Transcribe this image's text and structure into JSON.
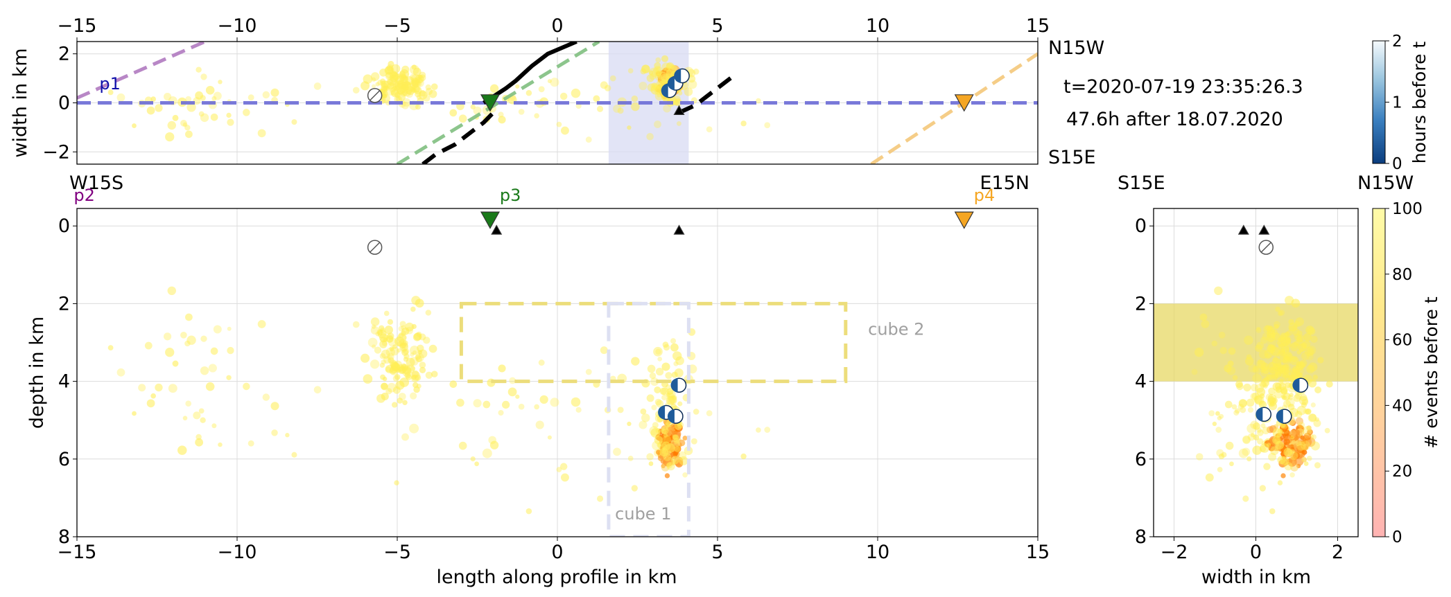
{
  "chart_data": [
    {
      "type": "scatter",
      "panel": "map-view",
      "xlabel": "",
      "ylabel": "width in km",
      "xlim": [
        -15,
        15
      ],
      "ylim": [
        -2.5,
        2.5
      ],
      "xticks": [
        -15,
        -10,
        -5,
        0,
        5,
        10,
        15
      ],
      "yticks": [
        -2,
        0,
        2
      ],
      "grid": true,
      "x_tick_position": "top",
      "side_labels": {
        "north": "N15W",
        "south": "S15E"
      },
      "profile_labels": [
        {
          "text": "p1",
          "x": -14.3,
          "y": 0.55,
          "color": "#1010aa"
        }
      ],
      "lines": [
        {
          "name": "p1",
          "color": "#6b6bd6",
          "x": [
            -15,
            15
          ],
          "y": [
            0,
            0
          ]
        },
        {
          "name": "p2",
          "color": "#b07ac0",
          "x": [
            -15,
            -11
          ],
          "y": [
            0.2,
            2.5
          ]
        },
        {
          "name": "p3",
          "color": "#7fbf7f",
          "x": [
            -5,
            1.3
          ],
          "y": [
            -2.5,
            2.5
          ]
        },
        {
          "name": "p4",
          "color": "#f4c87a",
          "x": [
            9.8,
            15
          ],
          "y": [
            -2.5,
            2.0
          ]
        },
        {
          "name": "fault-north",
          "color": "#000000",
          "x": [
            -2.3,
            -1.6,
            -1.3,
            -0.8,
            -0.6,
            -0.3,
            0.6
          ],
          "y": [
            0.0,
            0.6,
            0.9,
            1.5,
            1.7,
            2.0,
            2.5
          ]
        },
        {
          "name": "fault-south",
          "color": "#000000",
          "x": [
            -4.2,
            -3.8,
            -3.2,
            -2.3,
            -2.0
          ],
          "y": [
            -2.5,
            -2.1,
            -1.7,
            -0.8,
            -0.4
          ]
        },
        {
          "name": "fault-east",
          "color": "#000000",
          "x": [
            3.8,
            4.3,
            5.5
          ],
          "y": [
            -0.4,
            -0.1,
            1.1
          ]
        }
      ],
      "shaded_x_range": [
        1.6,
        4.1
      ],
      "stations": [
        {
          "label": "p3",
          "x": -2.1,
          "y": 0.0,
          "color": "#1a7a1a"
        },
        {
          "label": "p4",
          "x": 12.7,
          "y": 0.0,
          "color": "#f5a623"
        }
      ],
      "triangles": [
        {
          "x": 3.8,
          "y": -0.3
        }
      ],
      "mechanisms": [
        {
          "x": -5.7,
          "y": 0.3,
          "filled": false
        },
        {
          "x": 3.5,
          "y": 0.5,
          "filled": true
        },
        {
          "x": 3.7,
          "y": 0.8,
          "filled": true
        },
        {
          "x": 3.9,
          "y": 1.1,
          "filled": true
        }
      ],
      "text": [
        "t=2020-07-19 23:35:26.3",
        "47.6h after 18.07.2020"
      ]
    },
    {
      "type": "scatter",
      "panel": "depth-section",
      "xlabel": "length along profile in km",
      "ylabel": "depth in km",
      "xlim": [
        -15,
        15
      ],
      "ylim": [
        8,
        -0.45
      ],
      "xticks": [
        -15,
        -10,
        -5,
        0,
        5,
        10,
        15
      ],
      "yticks": [
        0,
        2,
        4,
        6,
        8
      ],
      "grid": true,
      "side_labels": {
        "west": "W15S",
        "east": "E15N"
      },
      "station_labels": [
        {
          "text": "p2",
          "x": -15.1,
          "color": "#800080"
        },
        {
          "text": "p3",
          "x": -1.8,
          "color": "#1a7a1a"
        },
        {
          "text": "p4",
          "x": 13.0,
          "color": "#f5a623"
        }
      ],
      "stations": [
        {
          "x": -2.1,
          "y": -0.15,
          "color": "#1a7a1a"
        },
        {
          "x": 12.7,
          "y": -0.15,
          "color": "#f5a623"
        }
      ],
      "triangles": [
        {
          "x": -1.9,
          "y": 0.1
        },
        {
          "x": 3.8,
          "y": 0.1
        }
      ],
      "cubes": [
        {
          "label": "cube 2",
          "x": [
            -3,
            9
          ],
          "depth": [
            2,
            4
          ],
          "color": "#ecdd7b"
        },
        {
          "label": "cube 1",
          "x": [
            1.6,
            4.1
          ],
          "depth": [
            2,
            8
          ],
          "color": "#dde0f2"
        }
      ],
      "mechanisms": [
        {
          "x": -5.7,
          "y": 0.55,
          "filled": false
        },
        {
          "x": 3.8,
          "y": 4.1,
          "filled": true
        },
        {
          "x": 3.4,
          "y": 4.8,
          "filled": true
        },
        {
          "x": 3.7,
          "y": 4.9,
          "filled": true
        }
      ]
    },
    {
      "type": "scatter",
      "panel": "width-section",
      "xlabel": "width in km",
      "ylabel": "",
      "xlim": [
        -2.5,
        2.5
      ],
      "ylim": [
        8,
        -0.45
      ],
      "xticks": [
        -2,
        0,
        2
      ],
      "yticks": [
        0,
        2,
        4,
        6,
        8
      ],
      "grid": true,
      "side_labels": {
        "left": "S15E",
        "right": "N15W"
      },
      "depth_band": [
        2,
        4
      ],
      "triangles": [
        {
          "x": -0.3,
          "y": 0.1
        },
        {
          "x": 0.2,
          "y": 0.1
        }
      ],
      "mechanisms": [
        {
          "x": 0.25,
          "y": 0.55,
          "filled": false
        },
        {
          "x": 1.1,
          "y": 4.1,
          "filled": true
        },
        {
          "x": 0.2,
          "y": 4.85,
          "filled": true
        },
        {
          "x": 0.7,
          "y": 4.9,
          "filled": true
        }
      ]
    }
  ],
  "colorbars": [
    {
      "label": "hours before t",
      "range": [
        0,
        2
      ],
      "ticks": [
        0,
        1,
        2
      ],
      "colors": [
        "#0b3d7e",
        "#3a7fbf",
        "#9ec8e0",
        "#f5f9fc"
      ]
    },
    {
      "label": "# events before t",
      "range": [
        0,
        100
      ],
      "ticks": [
        0,
        20,
        40,
        60,
        80,
        100
      ],
      "colors": [
        "#ffb3b3",
        "#ffd09e",
        "#ffe98c",
        "#fffba8"
      ]
    }
  ]
}
